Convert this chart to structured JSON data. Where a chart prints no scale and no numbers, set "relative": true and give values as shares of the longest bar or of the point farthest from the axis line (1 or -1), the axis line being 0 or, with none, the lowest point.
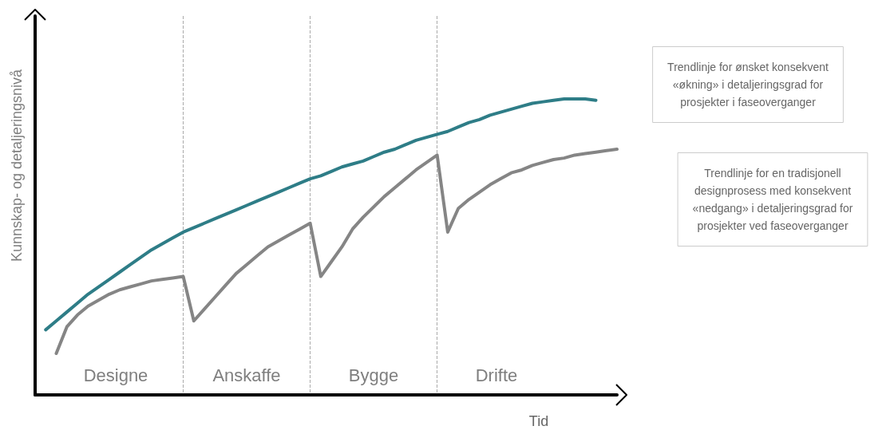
{
  "chart_data": {
    "type": "line",
    "xlabel": "Tid",
    "ylabel": "Kunnskap- og detaljeringsnivå",
    "relative": true,
    "grid": "x",
    "marker": "none",
    "line_style": "solid",
    "categories": [
      null,
      null,
      null,
      null,
      null,
      null,
      null,
      null,
      null,
      null,
      null,
      null,
      null,
      null,
      null,
      null,
      null,
      null,
      null,
      null,
      null,
      null,
      null,
      null,
      null,
      null,
      null,
      null,
      null,
      null,
      null,
      null,
      null,
      null,
      null,
      null,
      null,
      null,
      null,
      null,
      null,
      null,
      null,
      null,
      null,
      null,
      null,
      null,
      null,
      null,
      null,
      null,
      null,
      null,
      null,
      null
    ],
    "series": [
      {
        "color": "#2e7d87",
        "values": [
          null,
          0.22,
          0.25,
          0.28,
          0.31,
          0.34,
          0.365,
          0.39,
          0.415,
          0.44,
          0.465,
          0.49,
          0.51,
          0.53,
          0.55,
          0.565,
          0.58,
          0.595,
          0.61,
          0.625,
          0.64,
          0.655,
          0.67,
          0.685,
          0.7,
          0.715,
          0.73,
          0.74,
          0.755,
          0.77,
          0.78,
          0.79,
          0.805,
          0.82,
          0.83,
          0.845,
          0.86,
          0.87,
          0.88,
          0.89,
          0.905,
          0.92,
          0.93,
          0.945,
          0.955,
          0.965,
          0.975,
          0.985,
          0.99,
          0.995,
          1.0,
          1.0,
          1.0,
          0.995,
          null,
          null
        ]
      },
      {
        "color": "#858585",
        "values": [
          null,
          null,
          0.14,
          0.23,
          0.27,
          0.3,
          0.32,
          0.34,
          0.355,
          0.365,
          0.375,
          0.385,
          0.39,
          0.395,
          0.4,
          0.25,
          0.29,
          0.33,
          0.37,
          0.41,
          0.44,
          0.47,
          0.5,
          0.52,
          0.54,
          0.56,
          0.58,
          0.4,
          0.45,
          0.5,
          0.56,
          0.6,
          0.635,
          0.67,
          0.7,
          0.73,
          0.76,
          0.785,
          0.81,
          0.55,
          0.63,
          0.66,
          0.685,
          0.71,
          0.73,
          0.75,
          0.76,
          0.775,
          0.785,
          0.795,
          0.8,
          0.81,
          0.815,
          0.82,
          0.825,
          0.83
        ]
      }
    ],
    "annotations": [
      "Designe",
      "Anskaffe",
      "Bygge",
      "Drifte",
      "Trendlinje for ønsket konsekvent\n«økning» i detaljeringsgrad for\nprosjekter i faseoverganger",
      "Trendlinje for en tradisjonell\ndesignprosess med konsekvent\n«nedgang» i detaljeringsgrad for\nprosjekter ved faseoverganger"
    ]
  }
}
